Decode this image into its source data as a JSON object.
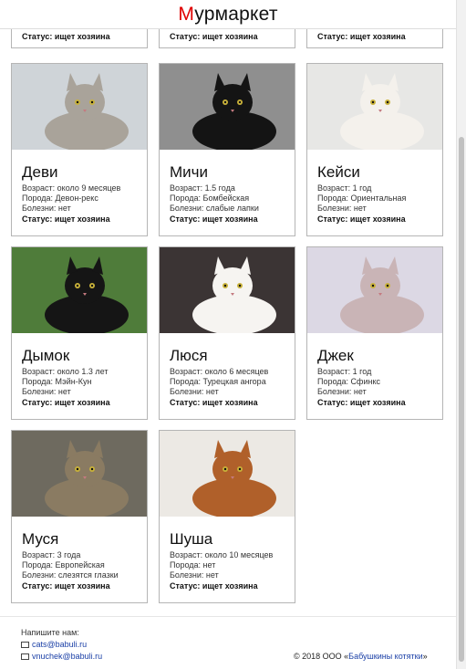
{
  "header": {
    "logo_first": "М",
    "logo_rest": "урмаркет"
  },
  "top_partial": [
    {
      "status": "Статус: ищет хозяина"
    },
    {
      "status": "Статус: ищет хозяина"
    },
    {
      "status": "Статус: ищет хозяина"
    }
  ],
  "cats": [
    {
      "name": "Деви",
      "age": "Возраст: около 9 месяцев",
      "breed": "Порода: Девон-рекс",
      "illness": "Болезни: нет",
      "status": "Статус: ищет хозяина",
      "photo_bg": "#cfd4d8",
      "cat_color": "#a9a39a",
      "photo_icon": "devon-rex-cat-photo"
    },
    {
      "name": "Мичи",
      "age": "Возраст: 1.5 года",
      "breed": "Порода: Бомбейская",
      "illness": "Болезни: слабые лапки",
      "status": "Статус: ищет хозяина",
      "photo_bg": "#8f8f8f",
      "cat_color": "#141414",
      "photo_icon": "bombay-cat-photo"
    },
    {
      "name": "Кейси",
      "age": "Возраст: 1 год",
      "breed": "Порода: Ориентальная",
      "illness": "Болезни: нет",
      "status": "Статус: ищет хозяина",
      "photo_bg": "#e7e7e5",
      "cat_color": "#f4f1ec",
      "photo_icon": "oriental-cat-photo"
    },
    {
      "name": "Дымок",
      "age": "Возраст: около 1.3 лет",
      "breed": "Порода: Мэйн-Кун",
      "illness": "Болезни: нет",
      "status": "Статус: ищет хозяина",
      "photo_bg": "#4f7c3a",
      "cat_color": "#151515",
      "photo_icon": "maine-coon-cat-photo"
    },
    {
      "name": "Люся",
      "age": "Возраст: около 6 месяцев",
      "breed": "Порода: Турецкая ангора",
      "illness": "Болезни: нет",
      "status": "Статус: ищет хозяина",
      "photo_bg": "#3b3434",
      "cat_color": "#f6f4f1",
      "photo_icon": "turkish-angora-cat-photo"
    },
    {
      "name": "Джек",
      "age": "Возраст: 1 год",
      "breed": "Порода: Сфинкс",
      "illness": "Болезни: нет",
      "status": "Статус: ищет хозяина",
      "photo_bg": "#dcd8e4",
      "cat_color": "#c9b4b6",
      "photo_icon": "sphynx-cat-photo"
    },
    {
      "name": "Муся",
      "age": "Возраст: 3 года",
      "breed": "Порода: Европейская",
      "illness": "Болезни: слезятся глазки",
      "status": "Статус: ищет хозяина",
      "photo_bg": "#6e6a5f",
      "cat_color": "#8a7b62",
      "photo_icon": "european-cat-photo"
    },
    {
      "name": "Шуша",
      "age": "Возраст: около 10 месяцев",
      "breed": "Порода: нет",
      "illness": "Болезни: нет",
      "status": "Статус: ищет хозяина",
      "photo_bg": "#ece9e4",
      "cat_color": "#b0602a",
      "photo_icon": "abyssinian-cat-photo"
    }
  ],
  "footer": {
    "write_us": "Напишите нам:",
    "email1": "cats@babuli.ru",
    "email2": "vnuchek@babuli.ru",
    "copyright": "© 2018 ООО «",
    "company": "Бабушкины котятки",
    "copyright_end": "»"
  }
}
